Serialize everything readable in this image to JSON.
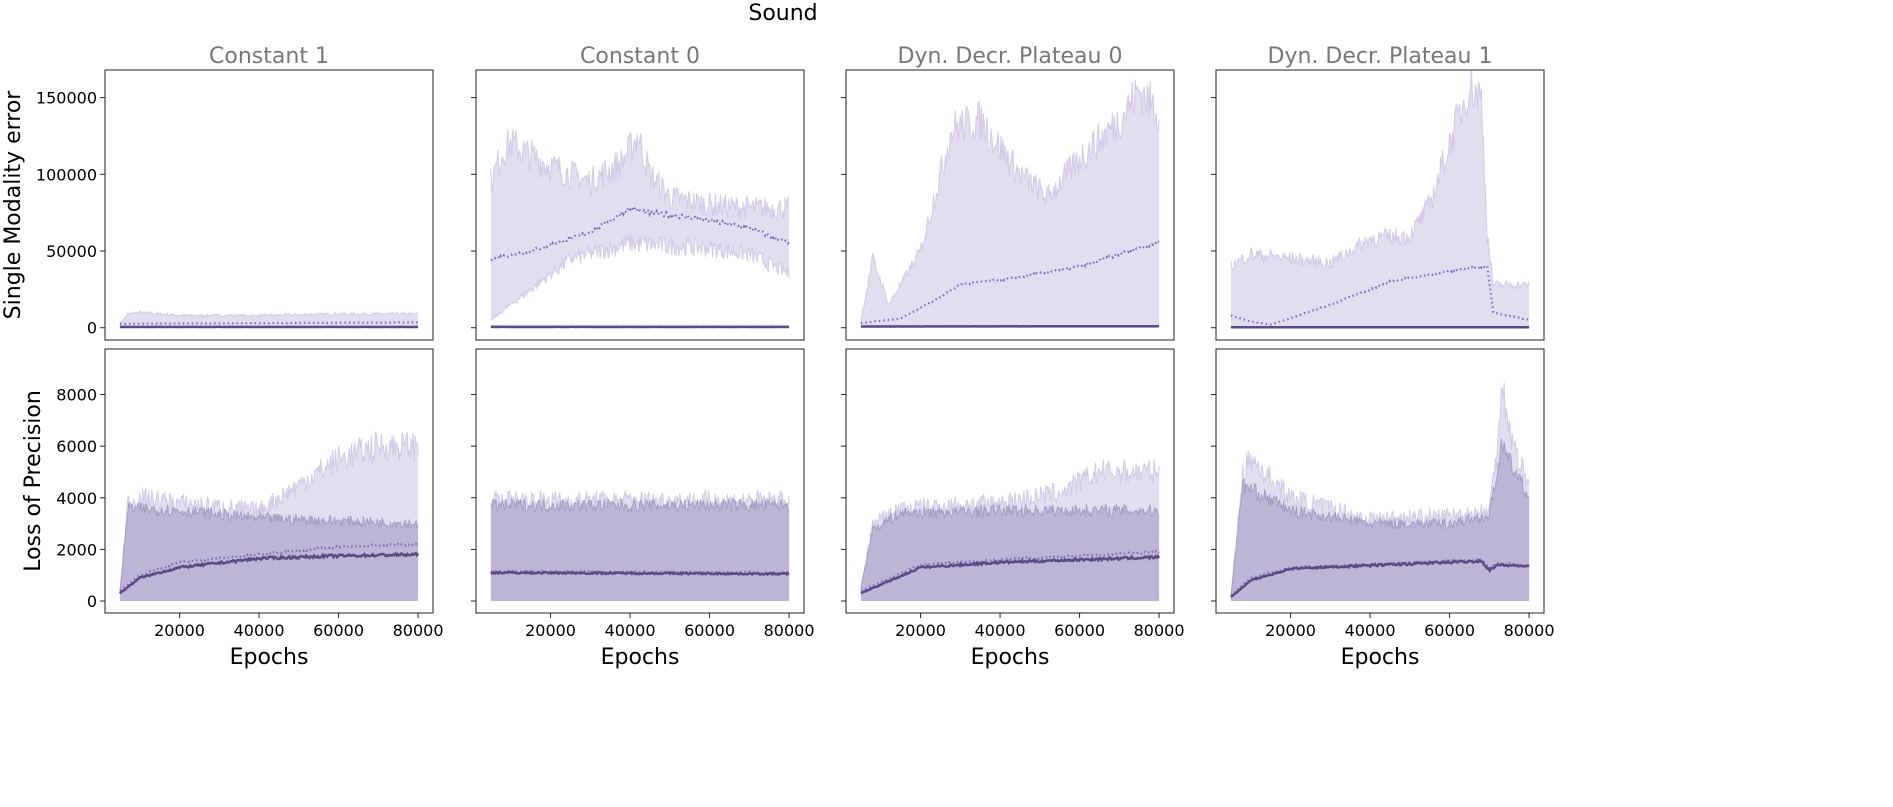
{
  "chart_data": {
    "type": "line",
    "title": "Sound",
    "columns": [
      "Constant 1",
      "Constant 0",
      "Dyn. Decr. Plateau 0",
      "Dyn. Decr. Plateau 1"
    ],
    "rows": [
      {
        "ylabel": "Single Modality error",
        "ylim": [
          -8000,
          168000
        ],
        "yticks": [
          0,
          50000,
          100000,
          150000
        ],
        "yticklabels": [
          "0",
          "50000",
          "100000",
          "150000"
        ]
      },
      {
        "ylabel": "Loss of Precision",
        "ylim": [
          -465,
          9765
        ],
        "yticks": [
          0,
          2000,
          4000,
          6000,
          8000
        ],
        "yticklabels": [
          "0",
          "2000",
          "4000",
          "6000",
          "8000"
        ]
      }
    ],
    "xlabel": "Epochs",
    "xlim": [
      1250,
      83750
    ],
    "xticks": [
      20000,
      40000,
      60000,
      80000
    ],
    "xticklabels": [
      "20000",
      "40000",
      "60000",
      "80000"
    ],
    "colors": {
      "band_light": "#e2ddef",
      "band_light_edge": "#d2cae6",
      "band_dark": "#bdb5d5",
      "band_dark_edge": "#a69dc5",
      "dotted": "#7e6cc0",
      "solid": "#5a4a85"
    },
    "panels": [
      [
        {
          "series": [
            {
              "name": "upper band",
              "kind": "band_light",
              "x": [
                5000,
                7000,
                10000,
                20000,
                40000,
                60000,
                80000
              ],
              "y": [
                3000,
                9000,
                10000,
                8000,
                8000,
                9000,
                9000
              ]
            },
            {
              "name": "dotted mean",
              "kind": "dotted",
              "x": [
                5000,
                40000,
                80000
              ],
              "y": [
                2500,
                3000,
                3500
              ]
            },
            {
              "name": "solid mean",
              "kind": "solid",
              "x": [
                5000,
                80000
              ],
              "y": [
                500,
                500
              ]
            }
          ]
        },
        {
          "series": [
            {
              "name": "upper band",
              "kind": "band_light",
              "x": [
                5000,
                8000,
                10000,
                20000,
                30000,
                38000,
                42000,
                45000,
                50000,
                60000,
                70000,
                80000
              ],
              "y": [
                95000,
                115000,
                120000,
                105000,
                95000,
                108000,
                125000,
                100000,
                85000,
                80000,
                78000,
                78000
              ]
            },
            {
              "name": "lower band",
              "kind": "gap",
              "x": [
                5000,
                10000,
                20000,
                25000,
                40000,
                60000,
                70000,
                80000
              ],
              "y": [
                5000,
                15000,
                35000,
                45000,
                55000,
                52000,
                48000,
                35000
              ]
            },
            {
              "name": "dotted mean",
              "kind": "dotted",
              "x": [
                5000,
                15000,
                30000,
                40000,
                45000,
                55000,
                70000,
                80000
              ],
              "y": [
                45000,
                50000,
                62000,
                78000,
                75000,
                72000,
                65000,
                55000
              ]
            },
            {
              "name": "solid mean",
              "kind": "solid",
              "x": [
                5000,
                80000
              ],
              "y": [
                500,
                500
              ]
            }
          ]
        },
        {
          "series": [
            {
              "name": "upper band",
              "kind": "band_light",
              "x": [
                5000,
                8000,
                10000,
                12000,
                20000,
                25000,
                28000,
                35000,
                45000,
                52000,
                60000,
                70000,
                75000,
                80000
              ],
              "y": [
                5000,
                45000,
                30000,
                15000,
                50000,
                100000,
                130000,
                135000,
                100000,
                85000,
                110000,
                135000,
                155000,
                140000
              ]
            },
            {
              "name": "dotted mean",
              "kind": "dotted",
              "x": [
                5000,
                15000,
                25000,
                30000,
                45000,
                60000,
                70000,
                80000
              ],
              "y": [
                3000,
                6000,
                20000,
                28000,
                33000,
                40000,
                48000,
                56000
              ]
            },
            {
              "name": "solid mean",
              "kind": "solid",
              "x": [
                5000,
                80000
              ],
              "y": [
                800,
                1000
              ]
            }
          ]
        },
        {
          "series": [
            {
              "name": "upper band",
              "kind": "band_light",
              "x": [
                5000,
                10000,
                20000,
                30000,
                40000,
                50000,
                55000,
                60000,
                65000,
                68000,
                69500,
                71000,
                80000
              ],
              "y": [
                40000,
                48000,
                45000,
                42000,
                58000,
                60000,
                80000,
                120000,
                158000,
                150000,
                60000,
                28000,
                28000
              ]
            },
            {
              "name": "dotted mean",
              "kind": "dotted",
              "x": [
                5000,
                10000,
                15000,
                30000,
                45000,
                60000,
                68000,
                69500,
                71000,
                80000
              ],
              "y": [
                8000,
                4000,
                2000,
                15000,
                30000,
                37000,
                40000,
                40000,
                10000,
                5000
              ]
            },
            {
              "name": "solid mean",
              "kind": "solid",
              "x": [
                5000,
                80000
              ],
              "y": [
                300,
                300
              ]
            }
          ]
        }
      ],
      [
        {
          "series": [
            {
              "name": "light band",
              "kind": "band_light",
              "x": [
                5000,
                7000,
                10000,
                20000,
                40000,
                50000,
                60000,
                70000,
                80000
              ],
              "y": [
                300,
                3800,
                4000,
                3800,
                3500,
                4500,
                5500,
                6000,
                6000
              ]
            },
            {
              "name": "dark band",
              "kind": "band_dark",
              "x": [
                5000,
                7000,
                20000,
                40000,
                60000,
                80000
              ],
              "y": [
                300,
                3600,
                3500,
                3200,
                3100,
                3000
              ]
            },
            {
              "name": "dotted mean",
              "kind": "dotted",
              "x": [
                5000,
                10000,
                20000,
                40000,
                60000,
                80000
              ],
              "y": [
                400,
                1000,
                1500,
                1800,
                2100,
                2200
              ]
            },
            {
              "name": "solid mean",
              "kind": "solid",
              "x": [
                5000,
                10000,
                20000,
                40000,
                60000,
                80000
              ],
              "y": [
                300,
                900,
                1300,
                1650,
                1750,
                1800
              ]
            }
          ]
        },
        {
          "series": [
            {
              "name": "light band",
              "kind": "band_light",
              "x": [
                5000,
                80000
              ],
              "y": [
                3900,
                3900
              ]
            },
            {
              "name": "dark band",
              "kind": "band_dark",
              "x": [
                5000,
                80000
              ],
              "y": [
                3700,
                3700
              ]
            },
            {
              "name": "dotted mean",
              "kind": "dotted",
              "x": [
                5000,
                80000
              ],
              "y": [
                1150,
                1100
              ]
            },
            {
              "name": "solid mean",
              "kind": "solid",
              "x": [
                5000,
                80000
              ],
              "y": [
                1100,
                1050
              ]
            }
          ]
        },
        {
          "series": [
            {
              "name": "light band",
              "kind": "band_light",
              "x": [
                5000,
                8000,
                15000,
                40000,
                55000,
                65000,
                80000
              ],
              "y": [
                500,
                3000,
                3600,
                3800,
                4200,
                5000,
                5000
              ]
            },
            {
              "name": "dark band",
              "kind": "band_dark",
              "x": [
                5000,
                8000,
                15000,
                40000,
                80000
              ],
              "y": [
                500,
                2800,
                3400,
                3500,
                3500
              ]
            },
            {
              "name": "dotted mean",
              "kind": "dotted",
              "x": [
                5000,
                20000,
                40000,
                80000
              ],
              "y": [
                400,
                1400,
                1600,
                1900
              ]
            },
            {
              "name": "solid mean",
              "kind": "solid",
              "x": [
                5000,
                20000,
                40000,
                80000
              ],
              "y": [
                300,
                1300,
                1500,
                1700
              ]
            }
          ]
        },
        {
          "series": [
            {
              "name": "light band",
              "kind": "band_light",
              "x": [
                5000,
                8000,
                10000,
                20000,
                40000,
                60000,
                70000,
                72000,
                73000,
                76000,
                80000
              ],
              "y": [
                200,
                5000,
                5500,
                4000,
                3200,
                3300,
                3500,
                6000,
                8500,
                6000,
                4500
              ]
            },
            {
              "name": "dark band",
              "kind": "band_dark",
              "x": [
                5000,
                8000,
                20000,
                40000,
                60000,
                70000,
                73000,
                80000
              ],
              "y": [
                200,
                4500,
                3500,
                3000,
                3000,
                3300,
                6000,
                4000
              ]
            },
            {
              "name": "dotted mean",
              "kind": "dotted",
              "x": [
                5000,
                10000,
                20000,
                40000,
                68000,
                70000,
                72000,
                80000
              ],
              "y": [
                200,
                900,
                1300,
                1400,
                1600,
                1300,
                1450,
                1400
              ]
            },
            {
              "name": "solid mean",
              "kind": "solid",
              "x": [
                5000,
                10000,
                20000,
                40000,
                68000,
                70000,
                72000,
                80000
              ],
              "y": [
                150,
                800,
                1250,
                1380,
                1550,
                1200,
                1400,
                1350
              ]
            }
          ]
        }
      ]
    ]
  }
}
